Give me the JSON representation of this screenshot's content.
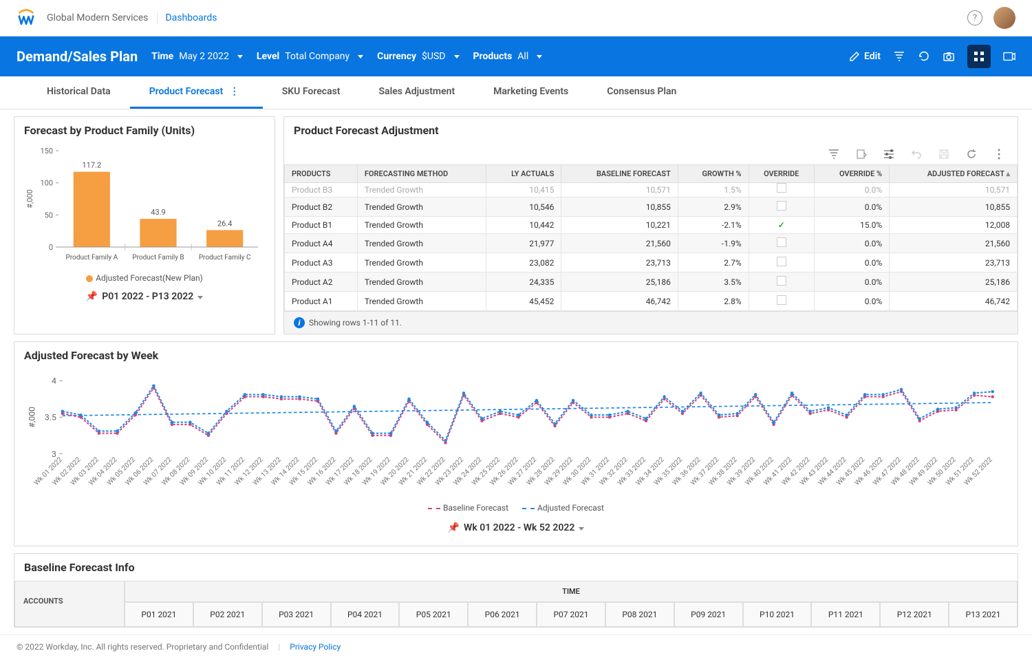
{
  "header": {
    "org": "Global Modern Services",
    "breadcrumb": "Dashboards"
  },
  "bluebar": {
    "title": "Demand/Sales Plan",
    "filters": [
      {
        "label": "Time",
        "value": "May 2 2022"
      },
      {
        "label": "Level",
        "value": "Total Company"
      },
      {
        "label": "Currency",
        "value": "$USD"
      },
      {
        "label": "Products",
        "value": "All"
      }
    ],
    "edit_label": "Edit"
  },
  "tabs": {
    "items": [
      "Historical Data",
      "Product Forecast",
      "SKU Forecast",
      "Sales Adjustment",
      "Marketing Events",
      "Consensus Plan"
    ],
    "active_index": 1
  },
  "bar_chart": {
    "title": "Forecast by Product Family (Units)",
    "y_axis_label": "#,000",
    "y_ticks": [
      0,
      50,
      100,
      150
    ],
    "ylim": [
      0,
      150
    ],
    "categories": [
      "Product Family A",
      "Product Family B",
      "Product Family C"
    ],
    "values": [
      117.2,
      43.9,
      26.4
    ],
    "bar_color": "#f59e42",
    "legend_label": "Adjusted Forecast(New Plan)",
    "legend_color": "#f59e42",
    "period_text": "P01 2022 - P13 2022",
    "label_fontsize": 11,
    "background": "#ffffff"
  },
  "forecast_table": {
    "title": "Product Forecast Adjustment",
    "columns": [
      "PRODUCTS",
      "FORECASTING METHOD",
      "LY ACTUALS",
      "BASELINE FORECAST",
      "GROWTH %",
      "OVERRIDE",
      "OVERRIDE %",
      "ADJUSTED FORECAST"
    ],
    "col_align": [
      "left",
      "left",
      "right",
      "right",
      "right",
      "center",
      "right",
      "right"
    ],
    "rows": [
      {
        "product": "Product B3",
        "method": "Trended Growth",
        "ly": "10,415",
        "baseline": "10,571",
        "growth": "1.5%",
        "override": false,
        "override_pct": "0.0%",
        "adjusted": "10,571",
        "cut": true
      },
      {
        "product": "Product B2",
        "method": "Trended Growth",
        "ly": "10,546",
        "baseline": "10,855",
        "growth": "2.9%",
        "override": false,
        "override_pct": "0.0%",
        "adjusted": "10,855"
      },
      {
        "product": "Product B1",
        "method": "Trended Growth",
        "ly": "10,442",
        "baseline": "10,221",
        "growth": "-2.1%",
        "override": true,
        "override_pct": "15.0%",
        "adjusted": "12,008"
      },
      {
        "product": "Product A4",
        "method": "Trended Growth",
        "ly": "21,977",
        "baseline": "21,560",
        "growth": "-1.9%",
        "override": false,
        "override_pct": "0.0%",
        "adjusted": "21,560"
      },
      {
        "product": "Product A3",
        "method": "Trended Growth",
        "ly": "23,082",
        "baseline": "23,713",
        "growth": "2.7%",
        "override": false,
        "override_pct": "0.0%",
        "adjusted": "23,713"
      },
      {
        "product": "Product A2",
        "method": "Trended Growth",
        "ly": "24,335",
        "baseline": "25,186",
        "growth": "3.5%",
        "override": false,
        "override_pct": "0.0%",
        "adjusted": "25,186"
      },
      {
        "product": "Product A1",
        "method": "Trended Growth",
        "ly": "45,452",
        "baseline": "46,742",
        "growth": "2.8%",
        "override": false,
        "override_pct": "0.0%",
        "adjusted": "46,742"
      }
    ],
    "info_text": "Showing rows 1-11 of 11."
  },
  "line_chart": {
    "title": "Adjusted Forecast by Week",
    "y_axis_label": "#,000",
    "y_ticks": [
      3,
      3.5,
      4
    ],
    "ylim": [
      3,
      4
    ],
    "x_labels": [
      "Wk 01 2022",
      "Wk 02 2022",
      "Wk 03 2022",
      "Wk 04 2022",
      "Wk 05 2022",
      "Wk 06 2022",
      "Wk 07 2022",
      "Wk 08 2022",
      "Wk 09 2022",
      "Wk 10 2022",
      "Wk 11 2022",
      "Wk 12 2022",
      "Wk 13 2022",
      "Wk 14 2022",
      "Wk 15 2022",
      "Wk 16 2022",
      "Wk 17 2022",
      "Wk 18 2022",
      "Wk 19 2022",
      "Wk 20 2022",
      "Wk 21 2022",
      "Wk 22 2022",
      "Wk 23 2022",
      "Wk 24 2022",
      "Wk 25 2022",
      "Wk 26 2022",
      "Wk 27 2022",
      "Wk 28 2022",
      "Wk 29 2022",
      "Wk 30 2022",
      "Wk 31 2022",
      "Wk 32 2022",
      "Wk 33 2022",
      "Wk 34 2022",
      "Wk 35 2022",
      "Wk 36 2022",
      "Wk 37 2022",
      "Wk 38 2022",
      "Wk 39 2022",
      "Wk 40 2022",
      "Wk 41 2022",
      "Wk 42 2022",
      "Wk 43 2022",
      "Wk 44 2022",
      "Wk 45 2022",
      "Wk 46 2022",
      "Wk 47 2022",
      "Wk 48 2022",
      "Wk 49 2022",
      "Wk 50 2022",
      "Wk 51 2022",
      "Wk 52 2022"
    ],
    "series": [
      {
        "name": "Baseline Forecast",
        "color": "#d1457a",
        "style": "dashed",
        "values": [
          3.55,
          3.5,
          3.28,
          3.28,
          3.53,
          3.9,
          3.4,
          3.4,
          3.25,
          3.55,
          3.78,
          3.78,
          3.75,
          3.75,
          3.72,
          3.28,
          3.62,
          3.25,
          3.25,
          3.72,
          3.4,
          3.15,
          3.8,
          3.45,
          3.55,
          3.5,
          3.7,
          3.38,
          3.7,
          3.5,
          3.5,
          3.55,
          3.45,
          3.75,
          3.55,
          3.8,
          3.5,
          3.52,
          3.78,
          3.4,
          3.8,
          3.55,
          3.6,
          3.5,
          3.78,
          3.78,
          3.85,
          3.45,
          3.58,
          3.6,
          3.8,
          3.78
        ]
      },
      {
        "name": "Adjusted Forecast",
        "color": "#1e88e5",
        "style": "dashed",
        "values": [
          3.58,
          3.53,
          3.31,
          3.31,
          3.56,
          3.93,
          3.43,
          3.43,
          3.28,
          3.58,
          3.81,
          3.81,
          3.78,
          3.78,
          3.75,
          3.31,
          3.65,
          3.28,
          3.28,
          3.75,
          3.43,
          3.18,
          3.83,
          3.48,
          3.58,
          3.53,
          3.73,
          3.41,
          3.73,
          3.53,
          3.53,
          3.58,
          3.48,
          3.78,
          3.58,
          3.83,
          3.53,
          3.55,
          3.81,
          3.43,
          3.83,
          3.58,
          3.63,
          3.53,
          3.81,
          3.81,
          3.88,
          3.48,
          3.61,
          3.63,
          3.83,
          3.85
        ]
      }
    ],
    "trend_line": {
      "color": "#1e88e5",
      "start_y": 3.52,
      "end_y": 3.7
    },
    "period_text": "Wk 01 2022 - Wk 52 2022",
    "marker_radius": 2
  },
  "baseline_info": {
    "title": "Baseline Forecast Info",
    "accounts_label": "ACCOUNTS",
    "time_label": "TIME",
    "periods": [
      "P01 2021",
      "P02 2021",
      "P03 2021",
      "P04 2021",
      "P05 2021",
      "P06 2021",
      "P07 2021",
      "P08 2021",
      "P09 2021",
      "P10 2021",
      "P11 2021",
      "P12 2021",
      "P13 2021"
    ]
  },
  "footer": {
    "copyright": "© 2022 Workday, Inc. All rights reserved. Proprietary and Confidential",
    "privacy": "Privacy Policy"
  }
}
